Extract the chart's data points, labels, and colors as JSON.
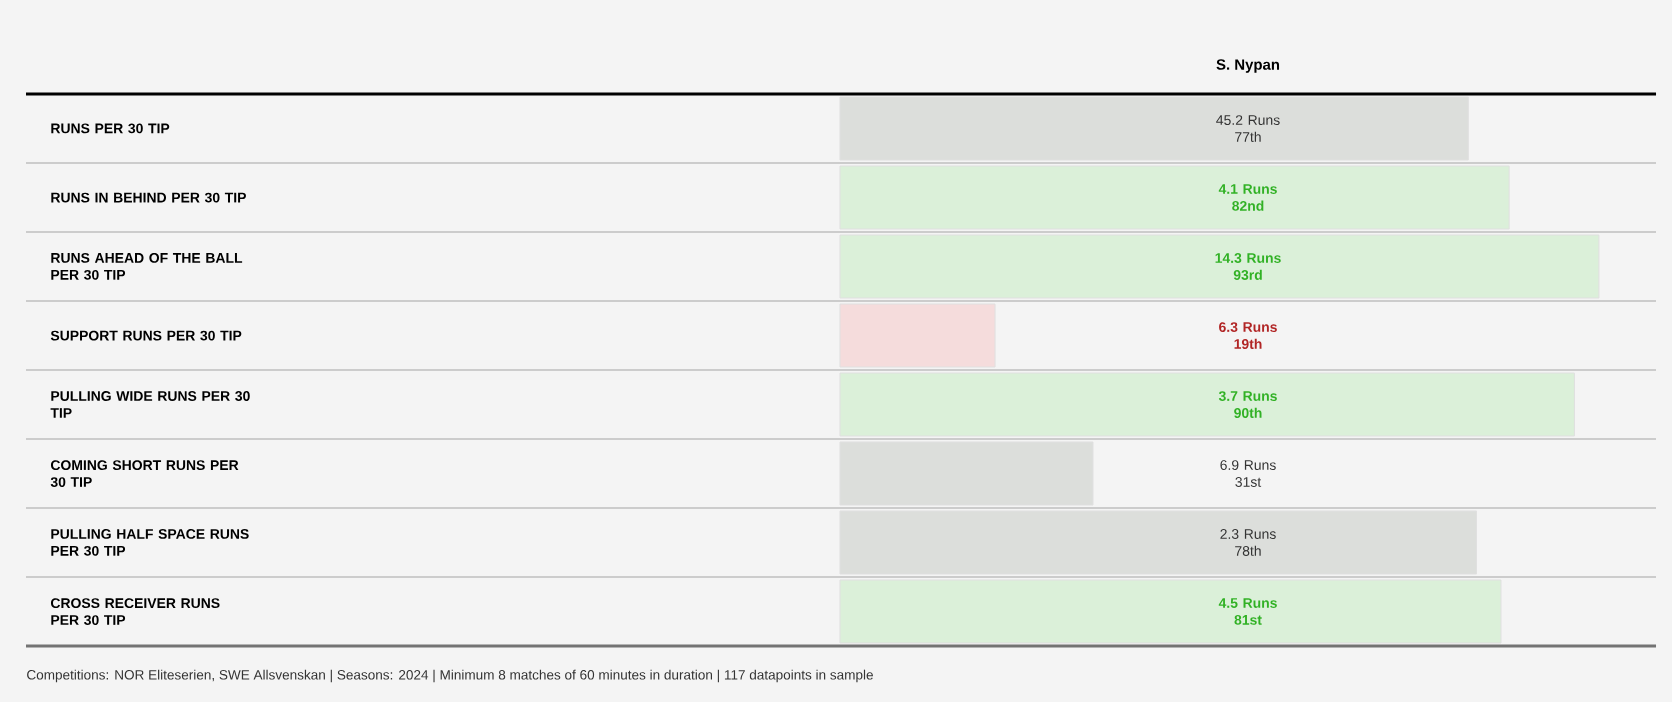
{
  "chart_data": {
    "type": "bar",
    "orientation": "horizontal",
    "title": "S. Nypan",
    "categories": [
      "RUNS PER 30 TIP",
      "RUNS IN BEHIND PER 30 TIP",
      "RUNS AHEAD OF THE BALL PER 30 TIP",
      "SUPPORT RUNS PER 30 TIP",
      "PULLING WIDE RUNS PER 30 TIP",
      "COMING SHORT RUNS PER 30 TIP",
      "PULLING HALF SPACE RUNS PER 30 TIP",
      "CROSS RECEIVER RUNS PER 30 TIP"
    ],
    "values": [
      77,
      82,
      93,
      19,
      90,
      31,
      78,
      81
    ],
    "colors": [
      "#dcdedb",
      "#dbf0d9",
      "#dbf0d9",
      "#f5dcdc",
      "#dbf0d9",
      "#dcdedb",
      "#dcdedb",
      "#dbf0d9"
    ],
    "value_labels": [
      "45.2 Runs 77th",
      "4.1 Runs 82nd",
      "14.3 Runs 93rd",
      "6.3 Runs 19th",
      "3.7 Runs 90th",
      "6.9 Runs 31st",
      "2.3 Runs 78th",
      "4.5 Runs 81st"
    ],
    "xlim": [
      0,
      100
    ],
    "tick_labels": false,
    "annotations": [
      "Competitions: NOR Eliteserien, SWE Allsvenskan | Seasons: 2024 | Minimum 8 matches of 60 minutes in duration | 117 datapoints in sample"
    ]
  }
}
